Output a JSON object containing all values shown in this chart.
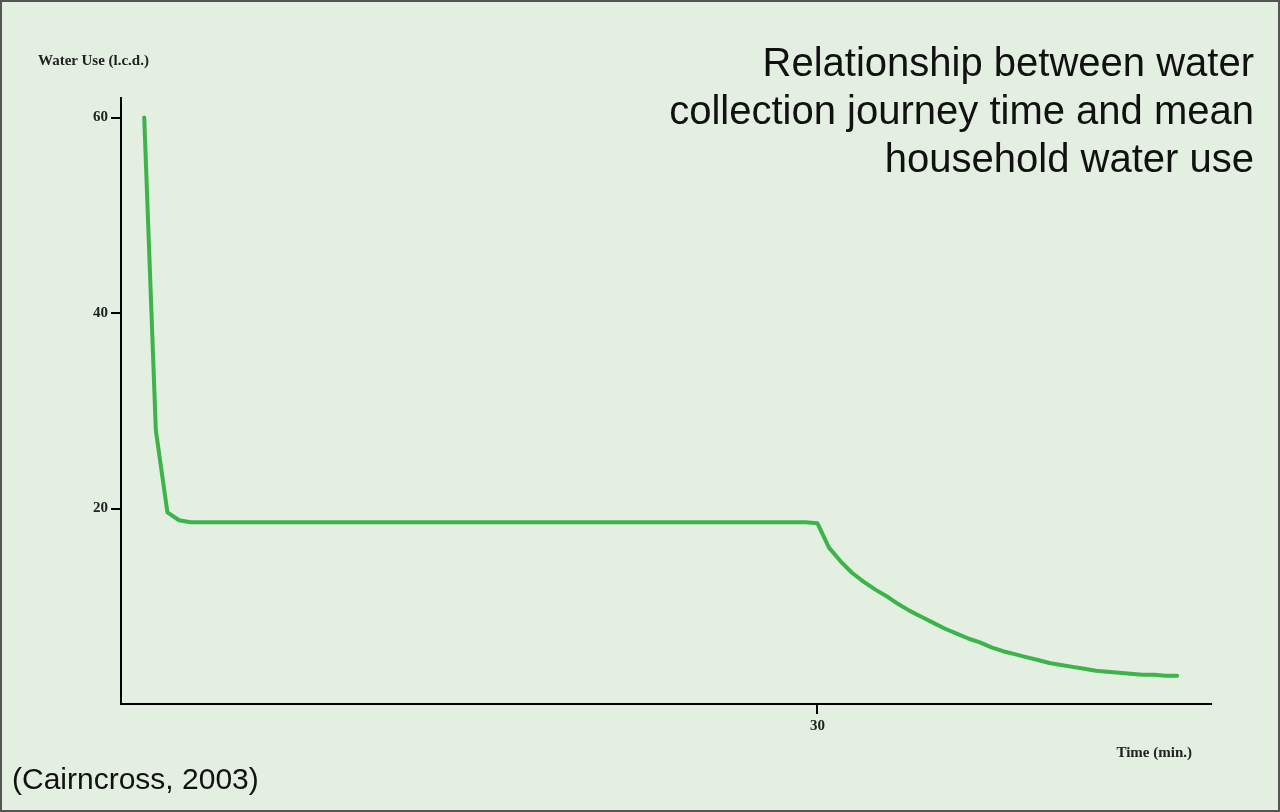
{
  "chart_data": {
    "type": "line",
    "title": "Relationship between water collection journey time and mean household water use",
    "xlabel": "Time (min.)",
    "ylabel": "Water Use (l.c.d.)",
    "annotations": [
      "(Cairncross, 2003)"
    ],
    "categories": [
      null,
      null,
      null,
      null,
      null,
      null,
      null,
      null,
      null,
      null,
      null,
      null,
      null,
      null,
      null,
      null,
      null,
      null,
      null,
      null,
      null,
      null,
      null,
      null,
      null,
      null,
      null,
      null,
      null,
      null,
      null,
      null,
      null,
      null,
      null,
      null,
      null,
      null,
      null,
      null,
      null,
      null,
      null,
      null,
      null,
      null,
      null,
      null,
      null,
      null,
      null,
      null,
      null,
      null,
      null,
      null,
      null,
      null,
      null,
      null,
      "30",
      null,
      null,
      null,
      null,
      null,
      null,
      null,
      null,
      null,
      null,
      null,
      null,
      null,
      null,
      null,
      null,
      null,
      null,
      null,
      null,
      null,
      null,
      null,
      null,
      null,
      null,
      null,
      null,
      null,
      null,
      null,
      null,
      null,
      null
    ],
    "series": [
      {
        "color": "#3cb44a",
        "values": [
          null,
          null,
          60,
          28,
          19.6,
          18.8,
          18.6,
          18.6,
          18.6,
          18.6,
          18.6,
          18.6,
          18.6,
          18.6,
          18.6,
          18.6,
          18.6,
          18.6,
          18.6,
          18.6,
          18.6,
          18.6,
          18.6,
          18.6,
          18.6,
          18.6,
          18.6,
          18.6,
          18.6,
          18.6,
          18.6,
          18.6,
          18.6,
          18.6,
          18.6,
          18.6,
          18.6,
          18.6,
          18.6,
          18.6,
          18.6,
          18.6,
          18.6,
          18.6,
          18.6,
          18.6,
          18.6,
          18.6,
          18.6,
          18.6,
          18.6,
          18.6,
          18.6,
          18.6,
          18.6,
          18.6,
          18.6,
          18.6,
          18.6,
          18.6,
          18.5,
          16,
          14.6,
          13.4,
          12.5,
          11.7,
          11.0,
          10.2,
          9.5,
          8.9,
          8.3,
          7.7,
          7.2,
          6.7,
          6.3,
          5.8,
          5.4,
          5.1,
          4.8,
          4.5,
          4.2,
          4.0,
          3.8,
          3.6,
          3.4,
          3.3,
          3.2,
          3.1,
          3.0,
          3.0,
          2.9,
          2.9,
          null,
          null,
          null
        ]
      }
    ],
    "ylim": [
      0,
      62
    ],
    "yticks": [
      20,
      40,
      60
    ],
    "grid": false,
    "legend": false,
    "marker": "none",
    "line_style": "solid"
  }
}
